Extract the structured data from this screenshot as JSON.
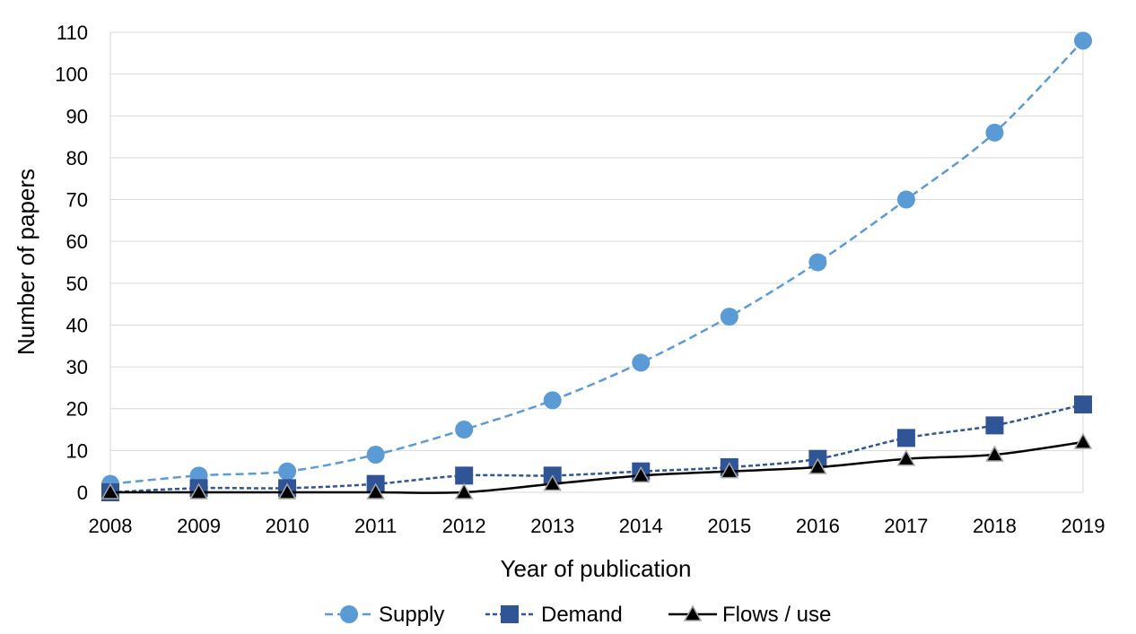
{
  "chart_data": {
    "type": "line",
    "x": [
      2008,
      2009,
      2010,
      2011,
      2012,
      2013,
      2014,
      2015,
      2016,
      2017,
      2018,
      2019
    ],
    "xlabel": "Year of publication",
    "ylabel": "Number of papers",
    "ylim": [
      0,
      110
    ],
    "yticks": [
      0,
      10,
      20,
      30,
      40,
      50,
      60,
      70,
      80,
      90,
      100,
      110
    ],
    "grid": true,
    "legend_position": "bottom",
    "series": [
      {
        "name": "Supply",
        "values": [
          2,
          4,
          5,
          9,
          15,
          22,
          31,
          42,
          55,
          70,
          86,
          108
        ],
        "color": "#5b9bd5",
        "marker": "circle",
        "line_style": "dashed"
      },
      {
        "name": "Demand",
        "values": [
          0,
          1,
          1,
          2,
          4,
          4,
          5,
          6,
          8,
          13,
          16,
          21
        ],
        "color": "#2f5597",
        "marker": "square",
        "line_style": "dashed"
      },
      {
        "name": "Flows / use",
        "values": [
          0,
          0,
          0,
          0,
          0,
          2,
          4,
          5,
          6,
          8,
          9,
          12
        ],
        "color": "#000000",
        "marker": "triangle",
        "line_style": "solid"
      }
    ]
  }
}
